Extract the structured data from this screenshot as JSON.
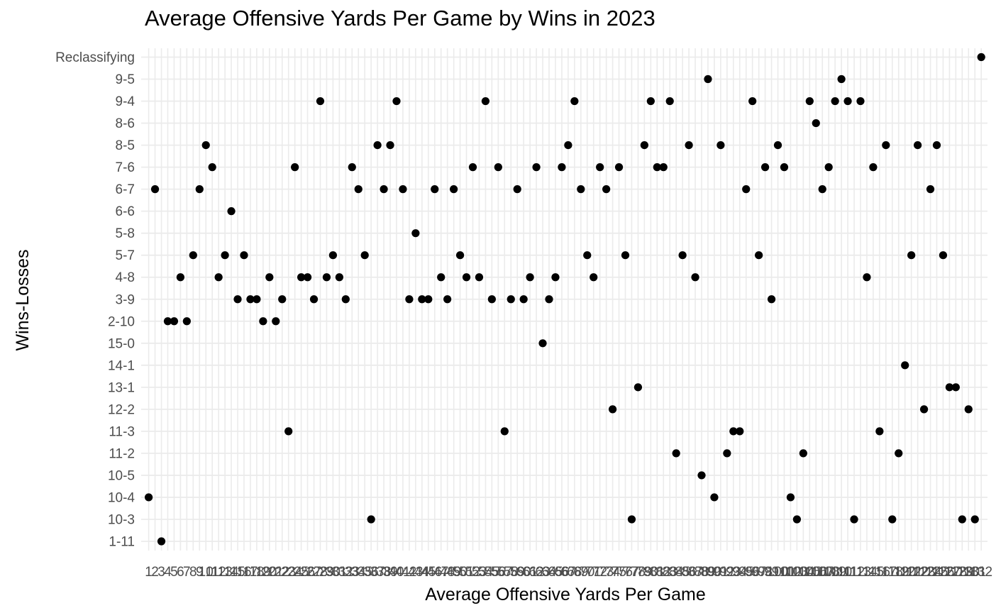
{
  "chart_data": {
    "type": "scatter",
    "title": "Average Offensive Yards Per Game by Wins in 2023",
    "xlabel": "Average Offensive Yards Per Game",
    "ylabel": "Wins-Losses",
    "y_categories": [
      "1-11",
      "10-3",
      "10-4",
      "10-5",
      "11-2",
      "11-3",
      "12-2",
      "13-1",
      "14-1",
      "15-0",
      "2-10",
      "3-9",
      "4-8",
      "5-7",
      "5-8",
      "6-6",
      "6-7",
      "7-6",
      "8-5",
      "8-6",
      "9-4",
      "9-5",
      "Reclassifying"
    ],
    "x_axis": "categorical (one tick per point, labels overlap and are unreadable)",
    "grid": true,
    "points": [
      {
        "x": 1,
        "y": "10-4"
      },
      {
        "x": 2,
        "y": "6-7"
      },
      {
        "x": 3,
        "y": "1-11"
      },
      {
        "x": 4,
        "y": "2-10"
      },
      {
        "x": 5,
        "y": "2-10"
      },
      {
        "x": 6,
        "y": "4-8"
      },
      {
        "x": 7,
        "y": "2-10"
      },
      {
        "x": 8,
        "y": "5-7"
      },
      {
        "x": 9,
        "y": "6-7"
      },
      {
        "x": 10,
        "y": "8-5"
      },
      {
        "x": 11,
        "y": "7-6"
      },
      {
        "x": 12,
        "y": "4-8"
      },
      {
        "x": 13,
        "y": "5-7"
      },
      {
        "x": 14,
        "y": "6-6"
      },
      {
        "x": 15,
        "y": "3-9"
      },
      {
        "x": 16,
        "y": "5-7"
      },
      {
        "x": 17,
        "y": "3-9"
      },
      {
        "x": 18,
        "y": "3-9"
      },
      {
        "x": 19,
        "y": "2-10"
      },
      {
        "x": 20,
        "y": "4-8"
      },
      {
        "x": 21,
        "y": "2-10"
      },
      {
        "x": 22,
        "y": "3-9"
      },
      {
        "x": 23,
        "y": "11-3"
      },
      {
        "x": 24,
        "y": "7-6"
      },
      {
        "x": 25,
        "y": "4-8"
      },
      {
        "x": 26,
        "y": "4-8"
      },
      {
        "x": 27,
        "y": "3-9"
      },
      {
        "x": 28,
        "y": "9-4"
      },
      {
        "x": 29,
        "y": "4-8"
      },
      {
        "x": 30,
        "y": "5-7"
      },
      {
        "x": 31,
        "y": "4-8"
      },
      {
        "x": 32,
        "y": "3-9"
      },
      {
        "x": 33,
        "y": "7-6"
      },
      {
        "x": 34,
        "y": "6-7"
      },
      {
        "x": 35,
        "y": "5-7"
      },
      {
        "x": 36,
        "y": "10-3"
      },
      {
        "x": 37,
        "y": "8-5"
      },
      {
        "x": 38,
        "y": "6-7"
      },
      {
        "x": 39,
        "y": "8-5"
      },
      {
        "x": 40,
        "y": "9-4"
      },
      {
        "x": 41,
        "y": "6-7"
      },
      {
        "x": 42,
        "y": "3-9"
      },
      {
        "x": 43,
        "y": "5-8"
      },
      {
        "x": 44,
        "y": "3-9"
      },
      {
        "x": 45,
        "y": "3-9"
      },
      {
        "x": 46,
        "y": "6-7"
      },
      {
        "x": 47,
        "y": "4-8"
      },
      {
        "x": 48,
        "y": "3-9"
      },
      {
        "x": 49,
        "y": "6-7"
      },
      {
        "x": 50,
        "y": "5-7"
      },
      {
        "x": 51,
        "y": "4-8"
      },
      {
        "x": 52,
        "y": "7-6"
      },
      {
        "x": 53,
        "y": "4-8"
      },
      {
        "x": 54,
        "y": "9-4"
      },
      {
        "x": 55,
        "y": "3-9"
      },
      {
        "x": 56,
        "y": "7-6"
      },
      {
        "x": 57,
        "y": "11-3"
      },
      {
        "x": 58,
        "y": "3-9"
      },
      {
        "x": 59,
        "y": "6-7"
      },
      {
        "x": 60,
        "y": "3-9"
      },
      {
        "x": 61,
        "y": "4-8"
      },
      {
        "x": 62,
        "y": "7-6"
      },
      {
        "x": 63,
        "y": "15-0"
      },
      {
        "x": 64,
        "y": "3-9"
      },
      {
        "x": 65,
        "y": "4-8"
      },
      {
        "x": 66,
        "y": "7-6"
      },
      {
        "x": 67,
        "y": "8-5"
      },
      {
        "x": 68,
        "y": "9-4"
      },
      {
        "x": 69,
        "y": "6-7"
      },
      {
        "x": 70,
        "y": "5-7"
      },
      {
        "x": 71,
        "y": "4-8"
      },
      {
        "x": 72,
        "y": "7-6"
      },
      {
        "x": 73,
        "y": "6-7"
      },
      {
        "x": 74,
        "y": "12-2"
      },
      {
        "x": 75,
        "y": "7-6"
      },
      {
        "x": 76,
        "y": "5-7"
      },
      {
        "x": 77,
        "y": "10-3"
      },
      {
        "x": 78,
        "y": "13-1"
      },
      {
        "x": 79,
        "y": "8-5"
      },
      {
        "x": 80,
        "y": "9-4"
      },
      {
        "x": 81,
        "y": "7-6"
      },
      {
        "x": 82,
        "y": "7-6"
      },
      {
        "x": 83,
        "y": "9-4"
      },
      {
        "x": 84,
        "y": "11-2"
      },
      {
        "x": 85,
        "y": "5-7"
      },
      {
        "x": 86,
        "y": "8-5"
      },
      {
        "x": 87,
        "y": "4-8"
      },
      {
        "x": 88,
        "y": "10-5"
      },
      {
        "x": 89,
        "y": "9-5"
      },
      {
        "x": 90,
        "y": "10-4"
      },
      {
        "x": 91,
        "y": "8-5"
      },
      {
        "x": 92,
        "y": "11-2"
      },
      {
        "x": 93,
        "y": "11-3"
      },
      {
        "x": 94,
        "y": "11-3"
      },
      {
        "x": 95,
        "y": "6-7"
      },
      {
        "x": 96,
        "y": "9-4"
      },
      {
        "x": 97,
        "y": "5-7"
      },
      {
        "x": 98,
        "y": "7-6"
      },
      {
        "x": 99,
        "y": "3-9"
      },
      {
        "x": 100,
        "y": "8-5"
      },
      {
        "x": 101,
        "y": "7-6"
      },
      {
        "x": 102,
        "y": "10-4"
      },
      {
        "x": 103,
        "y": "10-3"
      },
      {
        "x": 104,
        "y": "11-2"
      },
      {
        "x": 105,
        "y": "9-4"
      },
      {
        "x": 106,
        "y": "8-6"
      },
      {
        "x": 107,
        "y": "6-7"
      },
      {
        "x": 108,
        "y": "7-6"
      },
      {
        "x": 109,
        "y": "9-4"
      },
      {
        "x": 110,
        "y": "9-5"
      },
      {
        "x": 111,
        "y": "9-4"
      },
      {
        "x": 112,
        "y": "10-3"
      },
      {
        "x": 113,
        "y": "9-4"
      },
      {
        "x": 114,
        "y": "4-8"
      },
      {
        "x": 115,
        "y": "7-6"
      },
      {
        "x": 116,
        "y": "11-3"
      },
      {
        "x": 117,
        "y": "8-5"
      },
      {
        "x": 118,
        "y": "10-3"
      },
      {
        "x": 119,
        "y": "11-2"
      },
      {
        "x": 120,
        "y": "14-1"
      },
      {
        "x": 121,
        "y": "5-7"
      },
      {
        "x": 122,
        "y": "8-5"
      },
      {
        "x": 123,
        "y": "12-2"
      },
      {
        "x": 124,
        "y": "6-7"
      },
      {
        "x": 125,
        "y": "8-5"
      },
      {
        "x": 126,
        "y": "5-7"
      },
      {
        "x": 127,
        "y": "13-1"
      },
      {
        "x": 128,
        "y": "13-1"
      },
      {
        "x": 129,
        "y": "10-3"
      },
      {
        "x": 130,
        "y": "12-2"
      },
      {
        "x": 131,
        "y": "10-3"
      },
      {
        "x": 132,
        "y": "Reclassifying"
      }
    ],
    "colors": {
      "point": "#000000",
      "grid": "#ebebeb",
      "axis_text": "#4d4d4d",
      "label_text": "#000000"
    }
  }
}
